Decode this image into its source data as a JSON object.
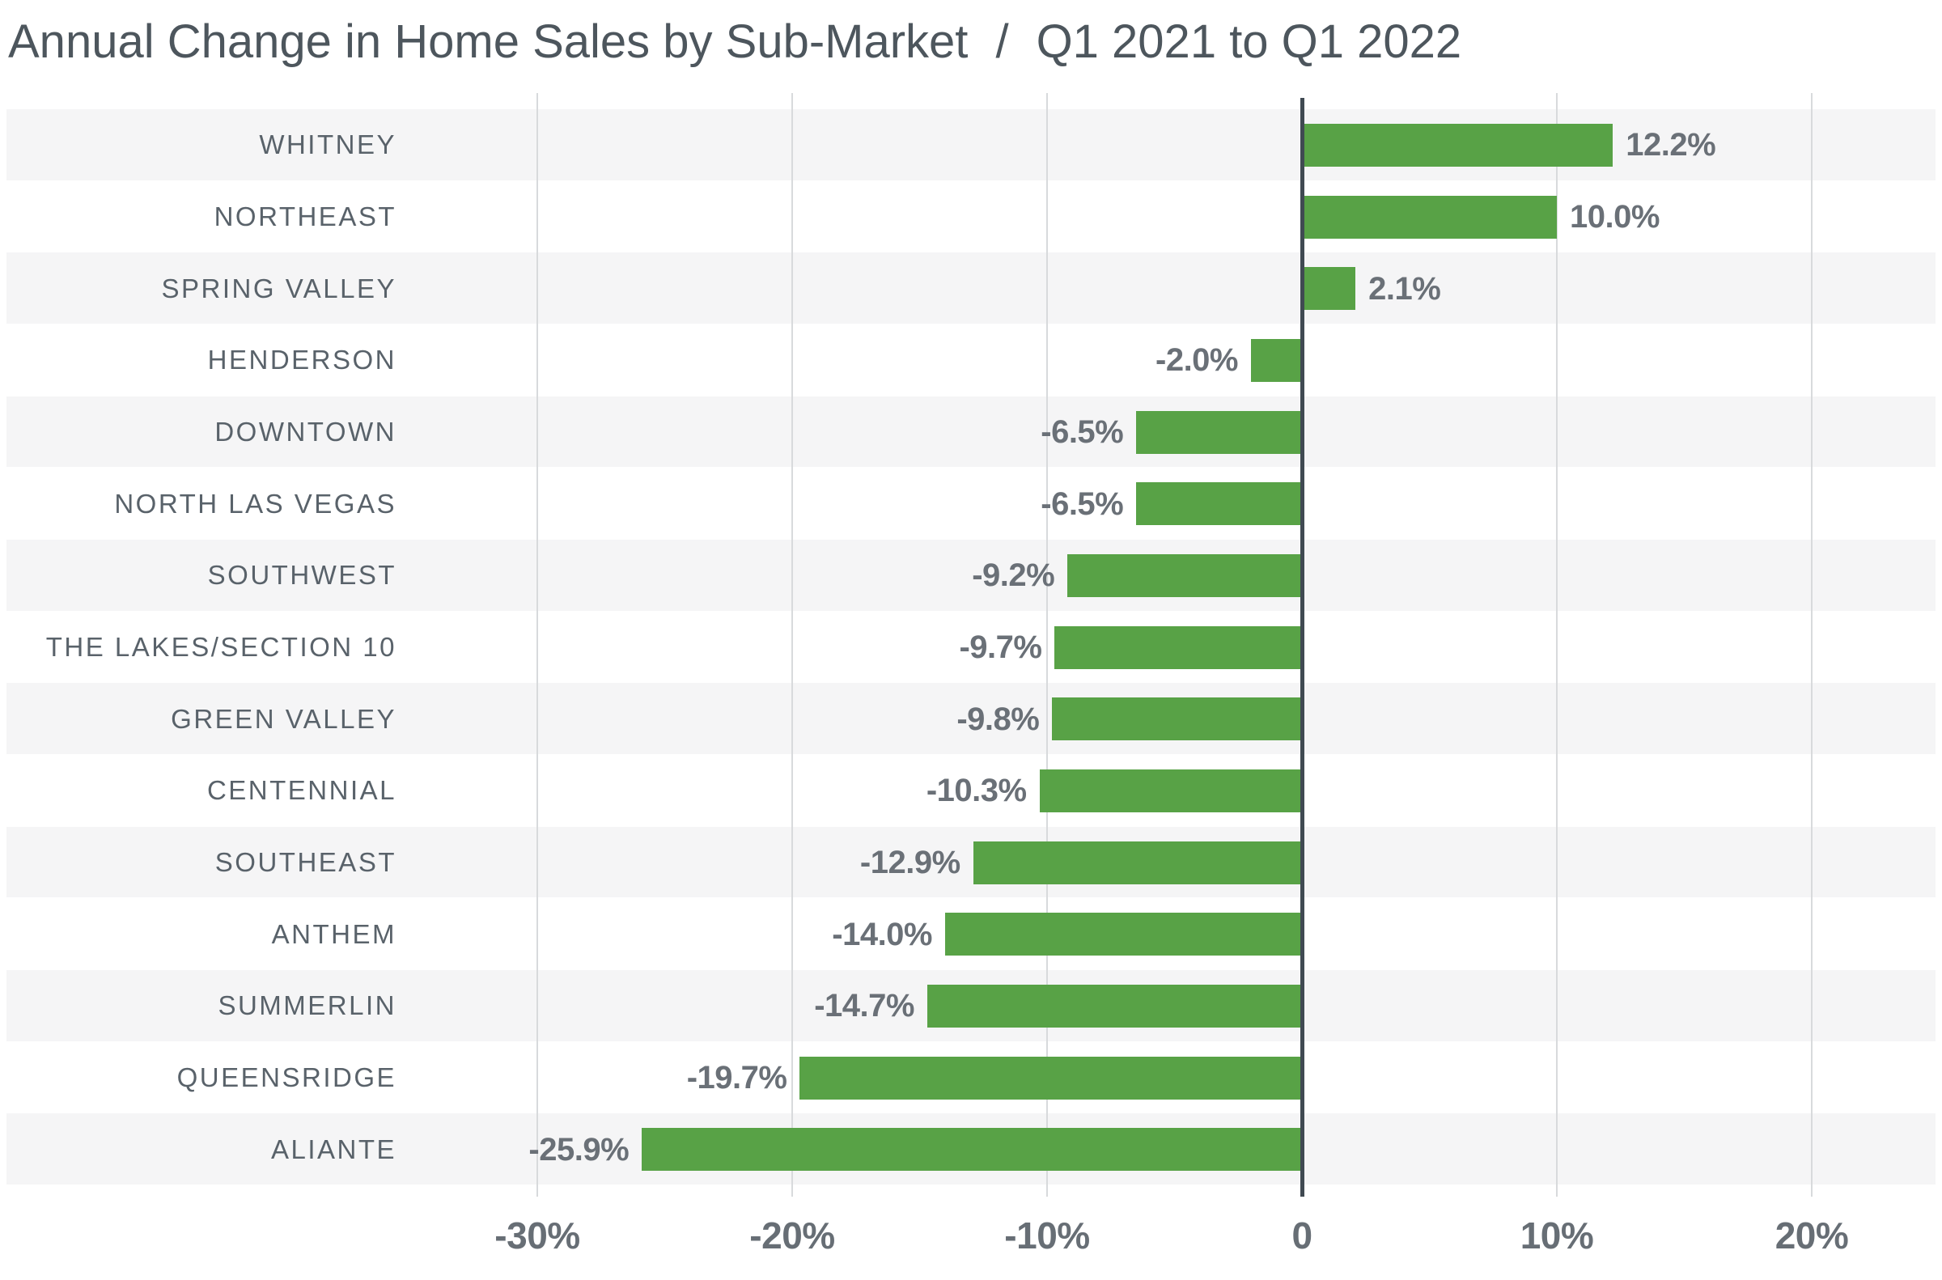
{
  "title": {
    "main": "Annual Change in Home Sales by Sub-Market",
    "separator": "/",
    "period": "Q1 2021 to Q1 2022"
  },
  "chart_data": {
    "type": "bar",
    "orientation": "horizontal",
    "title": "Annual Change in Home Sales by Sub-Market / Q1 2021 to Q1 2022",
    "xlabel": "",
    "ylabel": "",
    "grid": true,
    "xlim": [
      -31.5,
      25
    ],
    "categories": [
      "WHITNEY",
      "NORTHEAST",
      "SPRING VALLEY",
      "HENDERSON",
      "DOWNTOWN",
      "NORTH LAS VEGAS",
      "SOUTHWEST",
      "THE LAKES/SECTION 10",
      "GREEN VALLEY",
      "CENTENNIAL",
      "SOUTHEAST",
      "ANTHEM",
      "SUMMERLIN",
      "QUEENSRIDGE",
      "ALIANTE"
    ],
    "values": [
      12.2,
      10.0,
      2.1,
      -2.0,
      -6.5,
      -6.5,
      -9.2,
      -9.7,
      -9.8,
      -10.3,
      -12.9,
      -14.0,
      -14.7,
      -19.7,
      -25.9
    ],
    "value_labels": [
      "12.2%",
      "10.0%",
      "2.1%",
      "-2.0%",
      "-6.5%",
      "-6.5%",
      "-9.2%",
      "-9.7%",
      "-9.8%",
      "-10.3%",
      "-12.9%",
      "-14.0%",
      "-14.7%",
      "-19.7%",
      "-25.9%"
    ],
    "x_ticks": [
      {
        "value": -30,
        "label": "-30%"
      },
      {
        "value": -20,
        "label": "-20%"
      },
      {
        "value": -10,
        "label": "-10%"
      },
      {
        "value": 0,
        "label": "0"
      },
      {
        "value": 10,
        "label": "10%"
      },
      {
        "value": 20,
        "label": "20%"
      }
    ],
    "bar_color": "#58a246",
    "zero_line_color": "#404a52",
    "gridline_color": "#d8dadc",
    "band_color": "#f5f5f6",
    "text_color": "#59626a"
  }
}
